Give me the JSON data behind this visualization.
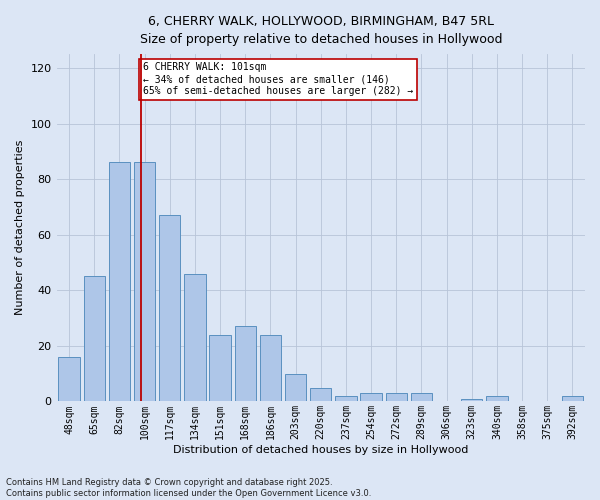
{
  "title1": "6, CHERRY WALK, HOLLYWOOD, BIRMINGHAM, B47 5RL",
  "title2": "Size of property relative to detached houses in Hollywood",
  "xlabel": "Distribution of detached houses by size in Hollywood",
  "ylabel": "Number of detached properties",
  "categories": [
    "48sqm",
    "65sqm",
    "82sqm",
    "100sqm",
    "117sqm",
    "134sqm",
    "151sqm",
    "168sqm",
    "186sqm",
    "203sqm",
    "220sqm",
    "237sqm",
    "254sqm",
    "272sqm",
    "289sqm",
    "306sqm",
    "323sqm",
    "340sqm",
    "358sqm",
    "375sqm",
    "392sqm"
  ],
  "values": [
    16,
    45,
    86,
    86,
    67,
    46,
    24,
    27,
    24,
    10,
    5,
    2,
    3,
    3,
    3,
    0,
    1,
    2,
    0,
    0,
    2
  ],
  "bar_color": "#aec6e8",
  "bar_edge_color": "#5a90c0",
  "grid_color": "#b8c4d8",
  "bg_color": "#dce6f5",
  "vline_x_index": 3,
  "vline_color": "#bb0000",
  "annotation_text": "6 CHERRY WALK: 101sqm\n← 34% of detached houses are smaller (146)\n65% of semi-detached houses are larger (282) →",
  "annotation_box_color": "#ffffff",
  "annotation_box_edge": "#bb0000",
  "footer": "Contains HM Land Registry data © Crown copyright and database right 2025.\nContains public sector information licensed under the Open Government Licence v3.0.",
  "ylim": [
    0,
    125
  ],
  "yticks": [
    0,
    20,
    40,
    60,
    80,
    100,
    120
  ]
}
